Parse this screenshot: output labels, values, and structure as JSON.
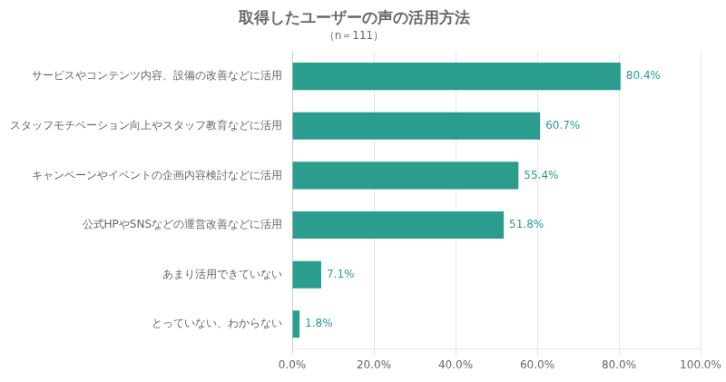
{
  "chart_data": {
    "type": "bar",
    "orientation": "horizontal",
    "title": "取得したユーザーの声の活用方法",
    "subtitle": "（n＝111）",
    "categories": [
      "サービスやコンテンツ内容、設備の改善などに活用",
      "スタッフモチベーション向上やスタッフ教育などに活用",
      "キャンペーンやイベントの企画内容検討などに活用",
      "公式HPやSNSなどの運営改善などに活用",
      "あまり活用できていない",
      "とっていない、わからない"
    ],
    "values": [
      80.4,
      60.7,
      55.4,
      51.8,
      7.1,
      1.8
    ],
    "value_labels": [
      "80.4%",
      "60.7%",
      "55.4%",
      "51.8%",
      "7.1%",
      "1.8%"
    ],
    "data_labels": true,
    "color": "#2a9d8f",
    "xlim": [
      0,
      100
    ],
    "xticks": [
      {
        "value": 0,
        "label": "0.0%"
      },
      {
        "value": 20,
        "label": "20.0%"
      },
      {
        "value": 40,
        "label": "40.0%"
      },
      {
        "value": 60,
        "label": "60.0%"
      },
      {
        "value": 80,
        "label": "80.0%"
      },
      {
        "value": 100,
        "label": "100.0%"
      }
    ],
    "grid": true
  }
}
